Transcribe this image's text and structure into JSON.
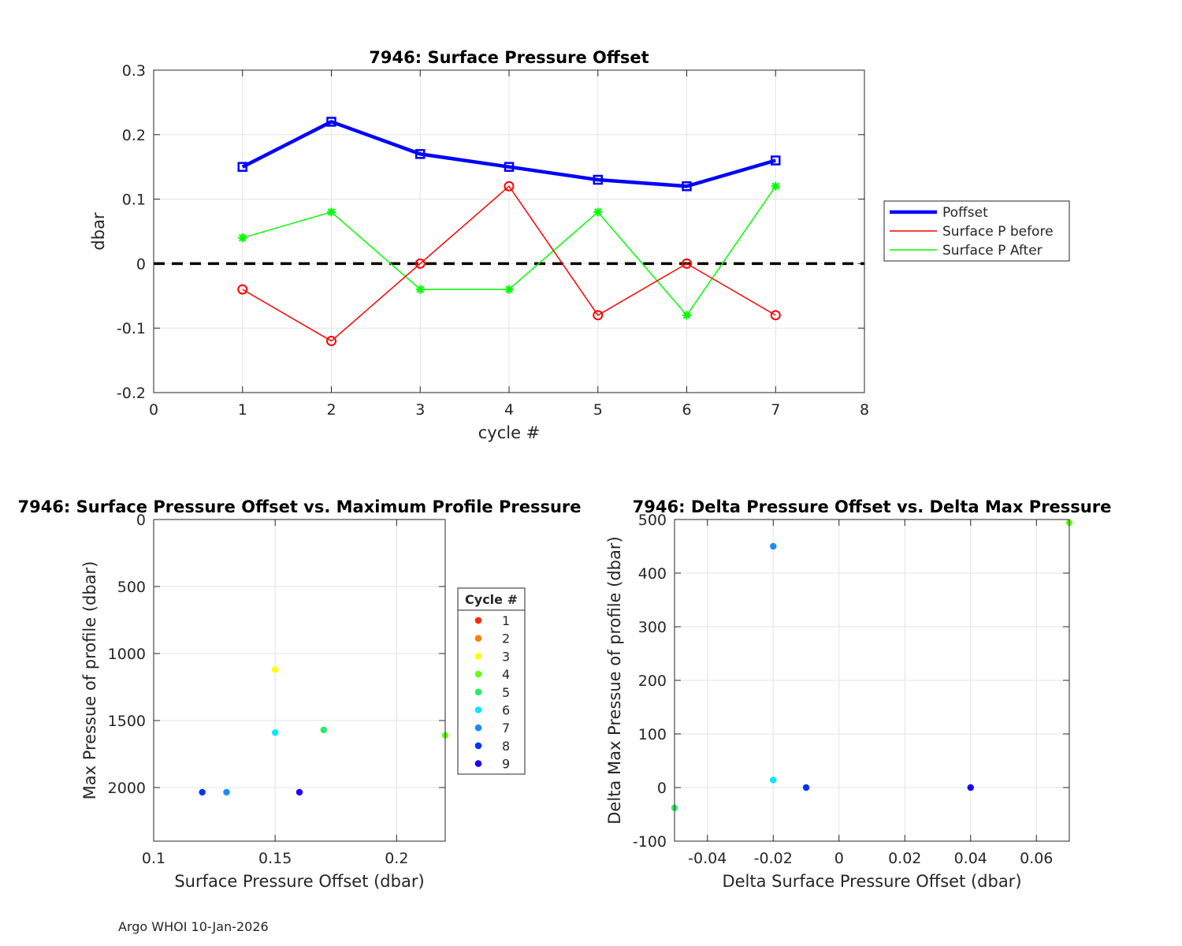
{
  "footer": "Argo WHOI 10-Jan-2026",
  "chart_data": [
    {
      "type": "line",
      "title": "7946: Surface Pressure Offset",
      "xlabel": "cycle #",
      "ylabel": "dbar",
      "xlim": [
        0,
        8
      ],
      "ylim": [
        -0.2,
        0.3
      ],
      "xticks": [
        0,
        1,
        2,
        3,
        4,
        5,
        6,
        7,
        8
      ],
      "yticks": [
        -0.2,
        -0.1,
        0,
        0.1,
        0.2,
        0.3
      ],
      "xtick_labels": [
        "0",
        "1",
        "2",
        "3",
        "4",
        "5",
        "6",
        "7",
        "8"
      ],
      "ytick_labels": [
        "-0.2",
        "-0.1",
        "0",
        "0.1",
        "0.2",
        "0.3"
      ],
      "grid": true,
      "legend_position": "outside-right",
      "reference_line": {
        "y": 0,
        "style": "dashed",
        "color": "#000000"
      },
      "x": [
        1,
        2,
        3,
        4,
        5,
        6,
        7
      ],
      "series": [
        {
          "name": "Poffset",
          "color": "#0000ff",
          "marker": "square",
          "values": [
            0.15,
            0.22,
            0.17,
            0.15,
            0.13,
            0.12,
            0.16
          ]
        },
        {
          "name": "Surface P before",
          "color": "#ff0000",
          "marker": "circle",
          "values": [
            -0.04,
            -0.12,
            0.0,
            0.12,
            -0.08,
            0.0,
            -0.08
          ]
        },
        {
          "name": "Surface P After",
          "color": "#00ff00",
          "marker": "star",
          "values": [
            0.04,
            0.08,
            -0.04,
            -0.04,
            0.08,
            -0.08,
            0.12
          ]
        }
      ]
    },
    {
      "type": "scatter",
      "title": "7946: Surface Pressure Offset vs. Maximum Profile Pressure",
      "xlabel": "Surface Pressure Offset (dbar)",
      "ylabel": "Max Pressue of profile (dbar)",
      "xlim": [
        0.1,
        0.22
      ],
      "ylim": [
        0,
        2400
      ],
      "y_reversed": true,
      "xticks": [
        0.1,
        0.15,
        0.2
      ],
      "yticks": [
        0,
        500,
        1000,
        1500,
        2000
      ],
      "xtick_labels": [
        "0.1",
        "0.15",
        "0.2"
      ],
      "ytick_labels": [
        "0",
        "500",
        "1000",
        "1500",
        "2000"
      ],
      "grid": true,
      "legend_title": "Cycle #",
      "legend_position": "outside-right",
      "legend": [
        {
          "label": "1",
          "color": "#ff2a00"
        },
        {
          "label": "2",
          "color": "#ff8000"
        },
        {
          "label": "3",
          "color": "#ffff00"
        },
        {
          "label": "4",
          "color": "#66ff1a"
        },
        {
          "label": "5",
          "color": "#22ee66"
        },
        {
          "label": "6",
          "color": "#00eaff"
        },
        {
          "label": "7",
          "color": "#1a8cff"
        },
        {
          "label": "8",
          "color": "#0033ff"
        },
        {
          "label": "9",
          "color": "#1a00ff"
        }
      ],
      "points": [
        {
          "cycle": "3",
          "x": 0.15,
          "y": 1120,
          "color": "#ffff00"
        },
        {
          "cycle": "4",
          "x": 0.22,
          "y": 1610,
          "color": "#66ff1a"
        },
        {
          "cycle": "5",
          "x": 0.17,
          "y": 1570,
          "color": "#22ee66"
        },
        {
          "cycle": "6",
          "x": 0.15,
          "y": 1590,
          "color": "#00eaff"
        },
        {
          "cycle": "7",
          "x": 0.13,
          "y": 2035,
          "color": "#1a8cff"
        },
        {
          "cycle": "8",
          "x": 0.12,
          "y": 2035,
          "color": "#0033ff"
        },
        {
          "cycle": "9",
          "x": 0.16,
          "y": 2035,
          "color": "#1a00ff"
        }
      ]
    },
    {
      "type": "scatter",
      "title": "7946: Delta Pressure Offset vs. Delta Max Pressure",
      "xlabel": "Delta Surface Pressure Offset (dbar)",
      "ylabel": "Delta Max Pressue of profile (dbar)",
      "xlim": [
        -0.05,
        0.07
      ],
      "ylim": [
        -100,
        500
      ],
      "xticks": [
        -0.04,
        -0.02,
        0,
        0.02,
        0.04,
        0.06
      ],
      "yticks": [
        -100,
        0,
        100,
        200,
        300,
        400,
        500
      ],
      "xtick_labels": [
        "-0.04",
        "-0.02",
        "0",
        "0.02",
        "0.04",
        "0.06"
      ],
      "ytick_labels": [
        "-100",
        "0",
        "100",
        "200",
        "300",
        "400",
        "500"
      ],
      "grid": true,
      "points": [
        {
          "x": 0.07,
          "y": 494,
          "color": "#66ff1a"
        },
        {
          "x": -0.05,
          "y": -38,
          "color": "#22ee66"
        },
        {
          "x": -0.02,
          "y": 14,
          "color": "#00eaff"
        },
        {
          "x": -0.02,
          "y": 450,
          "color": "#1a8cff"
        },
        {
          "x": -0.01,
          "y": 0,
          "color": "#0033ff"
        },
        {
          "x": 0.04,
          "y": 0,
          "color": "#1a00ff"
        }
      ]
    }
  ]
}
